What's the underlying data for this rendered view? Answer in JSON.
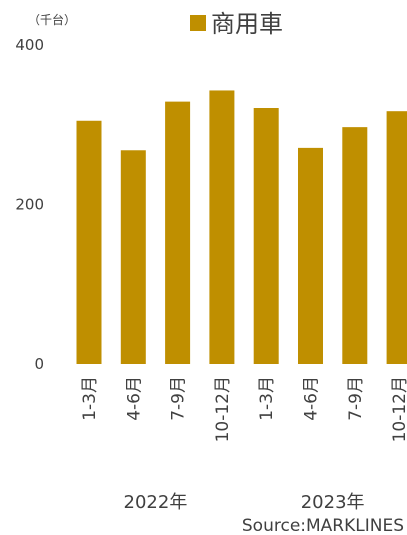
{
  "chart_data": {
    "type": "bar",
    "unit": "（千台）",
    "categories": [
      "1-3月",
      "4-6月",
      "7-9月",
      "10-12月",
      "1-3月",
      "4-6月",
      "7-9月",
      "10-12月"
    ],
    "groups": [
      {
        "label": "2022年",
        "start": 0,
        "end": 3
      },
      {
        "label": "2023年",
        "start": 4,
        "end": 7
      }
    ],
    "series": [
      {
        "name": "商用車",
        "color": "#bf8f00",
        "values": [
          305,
          268,
          329,
          343,
          321,
          271,
          297,
          317
        ]
      }
    ],
    "ylim": [
      0,
      400
    ],
    "yticks": [
      0,
      200,
      400
    ],
    "grid": false,
    "legend": "top-center",
    "source": "Source:MARKLINES"
  }
}
